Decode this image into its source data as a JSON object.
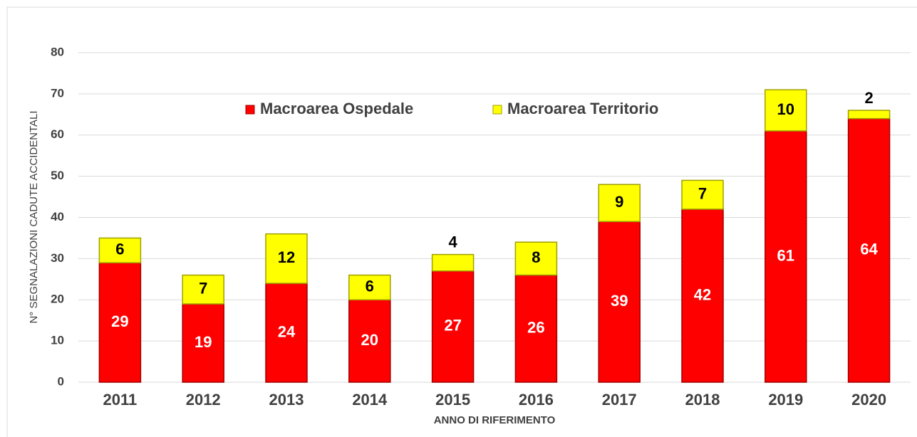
{
  "chart_data": {
    "type": "stacked-bar",
    "y_label": "N° SEGNALAZIONI CADUTE ACCIDENTALI",
    "x_label": "ANNO DI RIFERIMENTO",
    "categories": [
      "2011",
      "2012",
      "2013",
      "2014",
      "2015",
      "2016",
      "2017",
      "2018",
      "2019",
      "2020"
    ],
    "series": [
      {
        "name": "Macroarea Ospedale",
        "color": "#ff0000",
        "values": [
          29,
          19,
          24,
          20,
          27,
          26,
          39,
          42,
          61,
          64
        ]
      },
      {
        "name": "Macroarea Territorio",
        "color": "#ffff00",
        "values": [
          6,
          7,
          12,
          6,
          4,
          8,
          9,
          7,
          10,
          2
        ]
      }
    ],
    "ylim": [
      0,
      80
    ],
    "yticks": [
      0,
      10,
      20,
      30,
      40,
      50,
      60,
      70,
      80
    ],
    "grid": true
  }
}
